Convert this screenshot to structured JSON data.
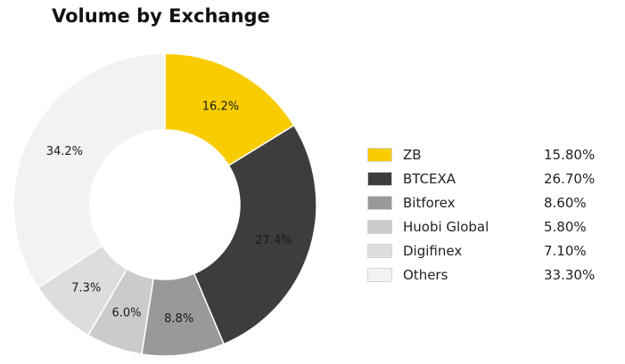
{
  "chart_data": {
    "type": "pie",
    "title": "Volume by Exchange",
    "slices": [
      {
        "label": "ZB",
        "value": 16.2,
        "display": "16.2%",
        "color": "#f8cc00"
      },
      {
        "label": "BTCEXA",
        "value": 27.4,
        "display": "27.4%",
        "color": "#3d3d3d"
      },
      {
        "label": "Bitforex",
        "value": 8.8,
        "display": "8.8%",
        "color": "#999999"
      },
      {
        "label": "Huobi Global",
        "value": 6.0,
        "display": "6.0%",
        "color": "#cbcbcb"
      },
      {
        "label": "Digifinex",
        "value": 7.3,
        "display": "7.3%",
        "color": "#dddddd"
      },
      {
        "label": "Others",
        "value": 34.2,
        "display": "34.2%",
        "color": "#f2f2f2"
      }
    ],
    "legend": [
      {
        "label": "ZB",
        "value": "15.80%",
        "color": "#f8cc00"
      },
      {
        "label": "BTCEXA",
        "value": "26.70%",
        "color": "#3d3d3d"
      },
      {
        "label": "Bitforex",
        "value": "8.60%",
        "color": "#999999"
      },
      {
        "label": "Huobi Global",
        "value": "5.80%",
        "color": "#cbcbcb"
      },
      {
        "label": "Digifinex",
        "value": "7.10%",
        "color": "#dddddd"
      },
      {
        "label": "Others",
        "value": "33.30%",
        "color": "#f2f2f2"
      }
    ],
    "legend_placement": "right"
  }
}
